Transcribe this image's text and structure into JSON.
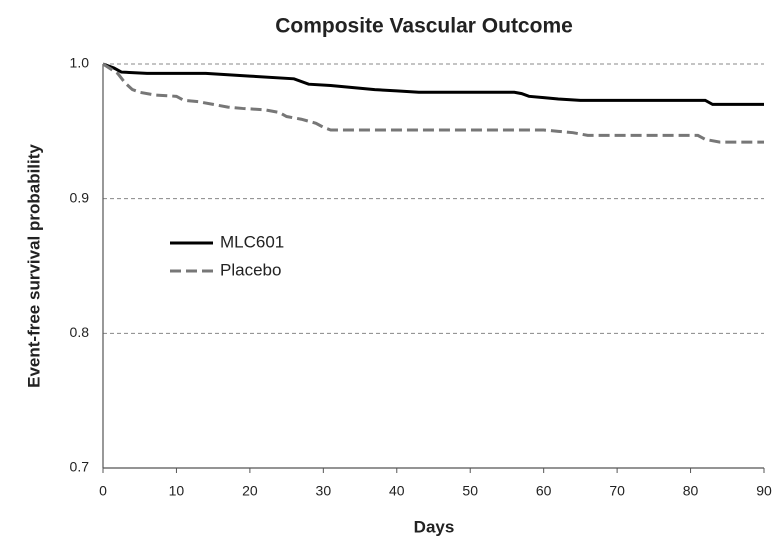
{
  "chart_data": {
    "type": "line",
    "title": "Composite Vascular Outcome",
    "x_label": "Days",
    "y_label": "Event-free survival probability",
    "xlim": [
      0,
      90
    ],
    "xticks": [
      0,
      10,
      20,
      30,
      40,
      50,
      60,
      70,
      80,
      90
    ],
    "ylim": [
      0.7,
      1
    ],
    "yticks": [
      0.7,
      0.8,
      0.9,
      {
        "value": 1,
        "label": "1.0"
      }
    ],
    "grid": true,
    "legend": "upper left",
    "series": [
      {
        "name": "MLC601",
        "color": "#000000",
        "dashed": false,
        "x": [
          0,
          1.5,
          2.5,
          6,
          14,
          20,
          26,
          28,
          31,
          33,
          37,
          40,
          43,
          56,
          57,
          58,
          60,
          62,
          65,
          82,
          83,
          90
        ],
        "values": [
          1,
          0.997,
          0.994,
          0.993,
          0.993,
          0.991,
          0.989,
          0.985,
          0.984,
          0.983,
          0.981,
          0.98,
          0.979,
          0.979,
          0.978,
          0.976,
          0.975,
          0.974,
          0.973,
          0.973,
          0.97,
          0.97
        ]
      },
      {
        "name": "Placebo",
        "color": "#777777",
        "dashed": true,
        "x": [
          0,
          2,
          3,
          4,
          5,
          7,
          10,
          11,
          13,
          15,
          17,
          19,
          22,
          24,
          25,
          27,
          29,
          30,
          31,
          60,
          62,
          64,
          66,
          81,
          82,
          84,
          90
        ],
        "values": [
          1,
          0.993,
          0.986,
          0.981,
          0.979,
          0.977,
          0.976,
          0.973,
          0.972,
          0.97,
          0.968,
          0.967,
          0.966,
          0.964,
          0.961,
          0.959,
          0.956,
          0.953,
          0.951,
          0.951,
          0.95,
          0.949,
          0.947,
          0.947,
          0.944,
          0.942,
          0.942
        ]
      }
    ]
  }
}
